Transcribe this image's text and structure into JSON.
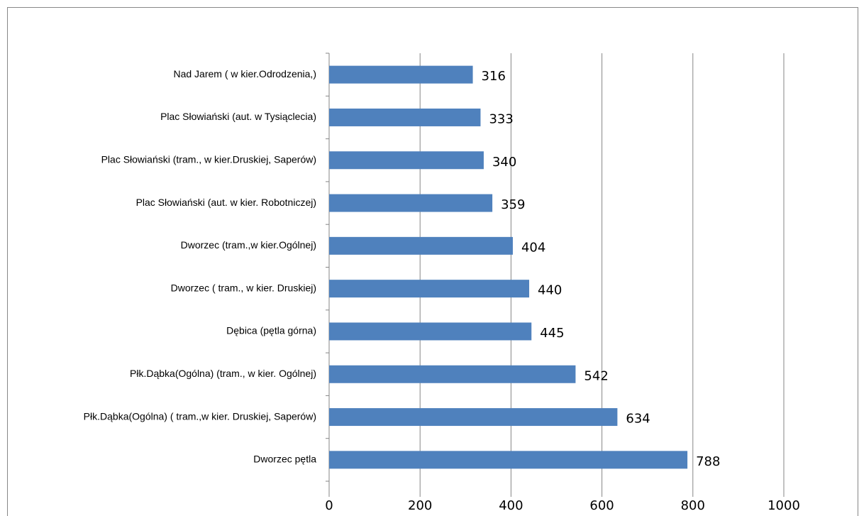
{
  "chart_data": {
    "type": "bar",
    "orientation": "horizontal",
    "categories": [
      "Nad Jarem ( w kier.Odrodzenia,)",
      "Plac Słowiański (aut. w Tysiąclecia)",
      "Plac Słowiański (tram., w kier.Druskiej, Saperów)",
      "Plac Słowiański (aut. w kier. Robotniczej)",
      "Dworzec (tram.,w kier.Ogólnej)",
      "Dworzec  ( tram., w kier. Druskiej)",
      "Dębica (pętla górna)",
      "Płk.Dąbka(Ogólna) (tram., w kier. Ogólnej)",
      "Płk.Dąbka(Ogólna) ( tram.,w kier. Druskiej, Saperów)",
      "Dworzec pętla"
    ],
    "values": [
      316,
      333,
      340,
      359,
      404,
      440,
      445,
      542,
      634,
      788
    ],
    "color": "#4f81bd",
    "xlim": [
      0,
      1000
    ],
    "xticks": [
      0,
      200,
      400,
      600,
      800,
      1000
    ],
    "grid": true
  }
}
